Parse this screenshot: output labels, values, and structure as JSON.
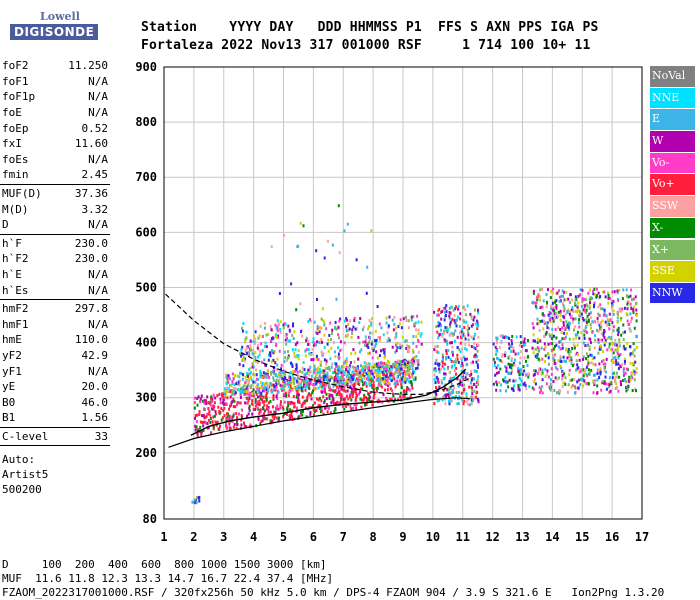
{
  "header": {
    "line1": "Station    YYYY DAY   DDD HHMMSS P1  FFS S AXN PPS IGA PS",
    "line2": "Fortaleza 2022 Nov13 317 001000 RSF     1 714 100 10+ 11"
  },
  "logo": {
    "top": "Lowell",
    "main": "DIGISONDE"
  },
  "scaled": [
    {
      "name": "foF2",
      "value": "11.250"
    },
    {
      "name": "foF1",
      "value": "N/A"
    },
    {
      "name": "foF1p",
      "value": "N/A"
    },
    {
      "name": "foE",
      "value": "N/A"
    },
    {
      "name": "foEp",
      "value": "0.52"
    },
    {
      "name": "fxI",
      "value": "11.60"
    },
    {
      "name": "foEs",
      "value": "N/A"
    },
    {
      "name": "fmin",
      "value": "2.45"
    },
    {
      "sep": true
    },
    {
      "name": "MUF(D)",
      "value": "37.36"
    },
    {
      "name": "M(D)",
      "value": "3.32"
    },
    {
      "name": "D",
      "value": "N/A"
    },
    {
      "sep": true
    },
    {
      "name": "h`F",
      "value": "230.0"
    },
    {
      "name": "h`F2",
      "value": "230.0"
    },
    {
      "name": "h`E",
      "value": "N/A"
    },
    {
      "name": "h`Es",
      "value": "N/A"
    },
    {
      "sep": true
    },
    {
      "name": "hmF2",
      "value": "297.8"
    },
    {
      "name": "hmF1",
      "value": "N/A"
    },
    {
      "name": "hmE",
      "value": "110.0"
    },
    {
      "name": "yF2",
      "value": "42.9"
    },
    {
      "name": "yF1",
      "value": "N/A"
    },
    {
      "name": "yE",
      "value": "20.0"
    },
    {
      "name": "B0",
      "value": "46.0"
    },
    {
      "name": "B1",
      "value": "1.56"
    },
    {
      "sep": true
    },
    {
      "name": "C-level",
      "value": "33"
    },
    {
      "sep": true
    }
  ],
  "autoscale": [
    "Auto:",
    "Artist5",
    "500200"
  ],
  "legend": [
    {
      "label": "NoVal",
      "color": "#808080"
    },
    {
      "label": "NNE",
      "color": "#00e0ff"
    },
    {
      "label": "E",
      "color": "#3cb4e6"
    },
    {
      "label": "W",
      "color": "#b000b0"
    },
    {
      "label": "Vo-",
      "color": "#ff3cc8"
    },
    {
      "label": "Vo+",
      "color": "#ff1e3c"
    },
    {
      "label": "SSW",
      "color": "#ffa0a0"
    },
    {
      "label": "X-",
      "color": "#008c00"
    },
    {
      "label": "X+",
      "color": "#7cb860"
    },
    {
      "label": "SSE",
      "color": "#d2d200"
    },
    {
      "label": "NNW",
      "color": "#2828e6"
    }
  ],
  "footer": {
    "d_row": "D     100  200  400  600  800 1000 1500 3000 [km]",
    "muf_row": "MUF  11.6 11.8 12.3 13.3 14.7 16.7 22.4 37.4 [MHz]",
    "file_row": "FZAOM_2022317001000.RSF / 320fx256h 50 kHz 5.0 km / DPS-4 FZAOM 904 / 3.9 S 321.6 E   Ion2Png 1.3.20"
  },
  "chart_data": {
    "type": "scatter",
    "xlim": [
      1,
      17
    ],
    "ylim": [
      80,
      900
    ],
    "x_ticks": [
      1,
      2,
      3,
      4,
      5,
      6,
      7,
      8,
      9,
      10,
      11,
      12,
      13,
      14,
      15,
      16,
      17
    ],
    "y_ticks": [
      80,
      200,
      300,
      400,
      500,
      600,
      700,
      800,
      900
    ],
    "x_tick_labels": [
      "1",
      "2",
      "3",
      "4",
      "5",
      "6",
      "7",
      "8",
      "9",
      "10",
      "11",
      "12",
      "13",
      "14",
      "15",
      "16",
      "17"
    ],
    "y_tick_labels": [
      "80",
      "200",
      "300",
      "400",
      "500",
      "600",
      "700",
      "800",
      "900"
    ],
    "grid": true,
    "legend_position": "right",
    "clusters": [
      {
        "x0": 2.0,
        "x1": 9.4,
        "h0": 232,
        "h1": 305,
        "slope": 0.95,
        "mix": [
          "#ff1e3c",
          "#ff3cc8",
          "#ff1e3c",
          "#b000b0",
          "#008c00",
          "#ff1e3c"
        ],
        "n": 900
      },
      {
        "x0": 3.0,
        "x1": 9.4,
        "h0": 305,
        "h1": 345,
        "slope": 0.4,
        "mix": [
          "#3cb4e6",
          "#00e0ff",
          "#2828e6",
          "#ff3cc8",
          "#ffa0a0",
          "#d2d200",
          "#7cb860"
        ],
        "n": 650
      },
      {
        "x0": 3.5,
        "x1": 9.6,
        "h0": 340,
        "h1": 440,
        "slope": 0.2,
        "mix": [
          "#3cb4e6",
          "#00e0ff",
          "#ffa0a0",
          "#2828e6",
          "#7cb860",
          "#ff3cc8",
          "#d2d200",
          "#b000b0"
        ],
        "n": 520
      },
      {
        "x0": 10.0,
        "x1": 11.5,
        "h0": 290,
        "h1": 470,
        "slope": 0.0,
        "mix": [
          "#2828e6",
          "#b000b0",
          "#00e0ff",
          "#ffa0a0",
          "#ff1e3c",
          "#3cb4e6",
          "#7cb860"
        ],
        "n": 380
      },
      {
        "x0": 12.0,
        "x1": 13.2,
        "h0": 315,
        "h1": 415,
        "slope": 0.0,
        "mix": [
          "#00e0ff",
          "#3cb4e6",
          "#ffa0a0",
          "#2828e6",
          "#008c00",
          "#b000b0"
        ],
        "n": 150
      },
      {
        "x0": 13.3,
        "x1": 16.8,
        "h0": 310,
        "h1": 500,
        "slope": 0.0,
        "mix": [
          "#b000b0",
          "#ff3cc8",
          "#2828e6",
          "#ffa0a0",
          "#3cb4e6",
          "#008c00",
          "#d2d200",
          "#7cb860"
        ],
        "n": 800
      },
      {
        "x0": 1.9,
        "x1": 2.15,
        "h0": 112,
        "h1": 122,
        "slope": 0.0,
        "mix": [
          "#2828e6",
          "#3cb4e6",
          "#7cb860"
        ],
        "n": 12
      },
      {
        "x0": 4.0,
        "x1": 8.5,
        "h0": 450,
        "h1": 660,
        "slope": 0.0,
        "mix": [
          "#3cb4e6",
          "#d2d200",
          "#008c00",
          "#ffa0a0",
          "#2828e6"
        ],
        "n": 26
      }
    ],
    "trace_low": [
      [
        1.15,
        210
      ],
      [
        2,
        226
      ],
      [
        3,
        238
      ],
      [
        4,
        248
      ],
      [
        5,
        258
      ],
      [
        6,
        266
      ],
      [
        7,
        274
      ],
      [
        8,
        282
      ],
      [
        9,
        290
      ],
      [
        10,
        297
      ],
      [
        10.8,
        300
      ],
      [
        11.25,
        298
      ]
    ],
    "trace_high": [
      [
        1.05,
        488
      ],
      [
        2,
        440
      ],
      [
        3,
        398
      ],
      [
        4,
        370
      ],
      [
        5,
        348
      ],
      [
        6,
        332
      ],
      [
        7,
        320
      ],
      [
        8,
        310
      ],
      [
        9,
        306
      ],
      [
        9.6,
        306
      ],
      [
        10.2,
        312
      ],
      [
        10.8,
        324
      ],
      [
        11.25,
        336
      ]
    ],
    "profile": [
      [
        1.9,
        232
      ],
      [
        2.5,
        248
      ],
      [
        3.2,
        258
      ],
      [
        4,
        265
      ],
      [
        5,
        272
      ],
      [
        6,
        282
      ],
      [
        7,
        288
      ],
      [
        8,
        292
      ],
      [
        9,
        296
      ],
      [
        9.8,
        305
      ],
      [
        10.3,
        318
      ],
      [
        10.8,
        336
      ],
      [
        11.1,
        352
      ]
    ]
  }
}
